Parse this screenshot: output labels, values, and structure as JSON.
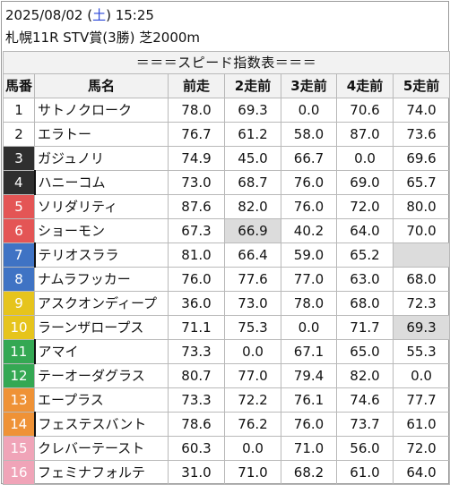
{
  "header": {
    "date_prefix": "2025/08/02 (",
    "weekday": "土",
    "date_suffix": ") 15:25",
    "race": "札幌11R STV賞(3勝) 芝2000m"
  },
  "table": {
    "title": "＝＝＝スピード指数表＝＝＝",
    "columns": [
      "馬番",
      "馬名",
      "前走",
      "2走前",
      "3走前",
      "4走前",
      "5走前"
    ],
    "rows": [
      {
        "num": "1",
        "name": "サトノクローク",
        "vals": [
          "78.0",
          "69.3",
          "0.0",
          "70.6",
          "74.0"
        ],
        "bg": "#ffffff",
        "fg": "#111111",
        "sep": false,
        "hl": [],
        "empty": []
      },
      {
        "num": "2",
        "name": "エラトー",
        "vals": [
          "76.7",
          "61.2",
          "58.0",
          "87.0",
          "73.6"
        ],
        "bg": "#ffffff",
        "fg": "#111111",
        "sep": false,
        "hl": [],
        "empty": []
      },
      {
        "num": "3",
        "name": "ガジュノリ",
        "vals": [
          "74.9",
          "45.0",
          "66.7",
          "0.0",
          "69.6"
        ],
        "bg": "#2f2f2f",
        "fg": "#ffffff",
        "sep": false,
        "hl": [],
        "empty": []
      },
      {
        "num": "4",
        "name": "ハニーコム",
        "vals": [
          "73.0",
          "68.7",
          "76.0",
          "69.0",
          "65.7"
        ],
        "bg": "#2f2f2f",
        "fg": "#ffffff",
        "sep": true,
        "hl": [],
        "empty": []
      },
      {
        "num": "5",
        "name": "ソリダリティ",
        "vals": [
          "87.6",
          "82.0",
          "76.0",
          "72.0",
          "80.0"
        ],
        "bg": "#e45555",
        "fg": "#ffffff",
        "sep": false,
        "hl": [],
        "empty": []
      },
      {
        "num": "6",
        "name": "ショーモン",
        "vals": [
          "67.3",
          "66.9",
          "40.2",
          "64.0",
          "70.0"
        ],
        "bg": "#e45555",
        "fg": "#ffffff",
        "sep": false,
        "hl": [
          1
        ],
        "empty": []
      },
      {
        "num": "7",
        "name": "テリオスララ",
        "vals": [
          "81.0",
          "66.4",
          "59.0",
          "65.2",
          ""
        ],
        "bg": "#3f73c4",
        "fg": "#ffffff",
        "sep": true,
        "hl": [],
        "empty": [
          4
        ]
      },
      {
        "num": "8",
        "name": "ナムラフッカー",
        "vals": [
          "76.0",
          "77.6",
          "77.0",
          "63.0",
          "68.0"
        ],
        "bg": "#3f73c4",
        "fg": "#ffffff",
        "sep": false,
        "hl": [],
        "empty": []
      },
      {
        "num": "9",
        "name": "アスクオンディープ",
        "vals": [
          "36.0",
          "73.0",
          "78.0",
          "68.0",
          "72.3"
        ],
        "bg": "#e6c41c",
        "fg": "#ffffff",
        "sep": false,
        "hl": [],
        "empty": []
      },
      {
        "num": "10",
        "name": "ラーンザロープス",
        "vals": [
          "71.1",
          "75.3",
          "0.0",
          "71.7",
          "69.3"
        ],
        "bg": "#e6c41c",
        "fg": "#ffffff",
        "sep": false,
        "hl": [
          4
        ],
        "empty": []
      },
      {
        "num": "11",
        "name": "アマイ",
        "vals": [
          "73.3",
          "0.0",
          "67.1",
          "65.0",
          "55.3"
        ],
        "bg": "#34a853",
        "fg": "#ffffff",
        "sep": true,
        "hl": [],
        "empty": []
      },
      {
        "num": "12",
        "name": "テーオーダグラス",
        "vals": [
          "80.7",
          "77.0",
          "79.4",
          "82.0",
          "0.0"
        ],
        "bg": "#34a853",
        "fg": "#ffffff",
        "sep": false,
        "hl": [],
        "empty": []
      },
      {
        "num": "13",
        "name": "エープラス",
        "vals": [
          "73.3",
          "72.2",
          "76.1",
          "74.6",
          "77.7"
        ],
        "bg": "#ef9236",
        "fg": "#ffffff",
        "sep": false,
        "hl": [],
        "empty": []
      },
      {
        "num": "14",
        "name": "フェステスバント",
        "vals": [
          "78.6",
          "76.2",
          "76.0",
          "73.7",
          "61.0"
        ],
        "bg": "#ef9236",
        "fg": "#ffffff",
        "sep": true,
        "hl": [],
        "empty": []
      },
      {
        "num": "15",
        "name": "クレバーテースト",
        "vals": [
          "60.3",
          "0.0",
          "71.0",
          "56.0",
          "72.0"
        ],
        "bg": "#f0a4b8",
        "fg": "#ffffff",
        "sep": false,
        "hl": [],
        "empty": []
      },
      {
        "num": "16",
        "name": "フェミナフォルテ",
        "vals": [
          "31.0",
          "71.0",
          "68.2",
          "61.0",
          "64.0"
        ],
        "bg": "#f0a4b8",
        "fg": "#ffffff",
        "sep": false,
        "hl": [],
        "empty": []
      }
    ]
  }
}
